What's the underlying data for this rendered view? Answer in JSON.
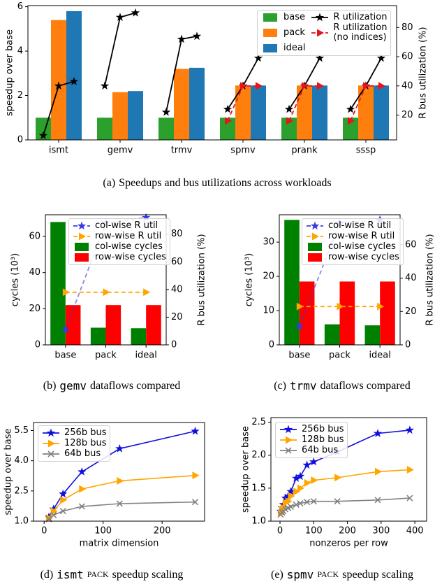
{
  "chart_data": [
    {
      "type": "bar",
      "caption": {
        "label": "(a)",
        "text": "Speedups and bus utilizations across workloads"
      },
      "categories": [
        "ismt",
        "gemv",
        "trmv",
        "spmv",
        "prank",
        "sssp"
      ],
      "ylabel": "speedup over base",
      "y2label": "R bus utilization (%)",
      "ylim": [
        0,
        6.05
      ],
      "yticks": [
        0,
        2,
        4,
        6
      ],
      "y2lim": [
        3,
        95
      ],
      "y2ticks": [
        20,
        40,
        60,
        80
      ],
      "legend": "upper right",
      "series": [
        {
          "name": "base",
          "color": "#2ca02c",
          "values": [
            1,
            1,
            1,
            1,
            1,
            1
          ]
        },
        {
          "name": "pack",
          "color": "#ff7f0e",
          "values": [
            5.4,
            2.15,
            3.2,
            2.45,
            2.45,
            2.45
          ]
        },
        {
          "name": "ideal",
          "color": "#1f77b4",
          "values": [
            5.8,
            2.2,
            3.25,
            2.45,
            2.45,
            2.45
          ]
        },
        {
          "name": "R utilization",
          "type": "line",
          "axis": "y2",
          "color": "#000000",
          "marker": "star",
          "linestyle": "solid",
          "values": [
            [
              6,
              40,
              43
            ],
            [
              40,
              87,
              90
            ],
            [
              22,
              72,
              74
            ],
            [
              24,
              40,
              59
            ],
            [
              24,
              40,
              59
            ],
            [
              24,
              40,
              59
            ]
          ]
        },
        {
          "name": "R utilization\n(no indices)",
          "type": "line",
          "axis": "y2",
          "color": "#e8141c",
          "marker": "triangle",
          "linestyle": "dashed",
          "values": [
            null,
            null,
            null,
            [
              16,
              40,
              40
            ],
            [
              16,
              40,
              40
            ],
            [
              16,
              40,
              40
            ]
          ]
        }
      ]
    },
    {
      "type": "bar",
      "caption": {
        "label": "(b)",
        "code": "gemv",
        "text": "dataflows compared"
      },
      "categories": [
        "base",
        "pack",
        "ideal"
      ],
      "ylabel": "cycles (10³)",
      "y2label": "R bus utilization (%)",
      "ylim": [
        0,
        72
      ],
      "yticks": [
        0,
        20,
        40,
        60
      ],
      "y2lim": [
        0,
        94
      ],
      "y2ticks": [
        0,
        20,
        40,
        60,
        80
      ],
      "legend": "upper right",
      "series": [
        {
          "name": "col-wise R util",
          "type": "line",
          "axis": "y2",
          "color": "#3a3ae0",
          "marker": "star",
          "linestyle": "dashed",
          "values": [
            11,
            88,
            92
          ]
        },
        {
          "name": "row-wise R util",
          "type": "line",
          "axis": "y2",
          "color": "#ffa500",
          "marker": "triangle",
          "linestyle": "dashed",
          "values": [
            38,
            38,
            38
          ]
        },
        {
          "name": "col-wise cycles",
          "color": "#008000",
          "values": [
            68,
            9.5,
            9.2
          ]
        },
        {
          "name": "row-wise cycles",
          "color": "#ff0000",
          "values": [
            22,
            22,
            22
          ]
        }
      ]
    },
    {
      "type": "bar",
      "caption": {
        "label": "(c)",
        "code": "trmv",
        "text": "dataflows compared"
      },
      "categories": [
        "base",
        "pack",
        "ideal"
      ],
      "ylabel": "cycles (10³)",
      "y2label": "R bus utilization (%)",
      "ylim": [
        0,
        38
      ],
      "yticks": [
        0,
        10,
        20,
        30
      ],
      "y2lim": [
        0,
        78
      ],
      "y2ticks": [
        0,
        20,
        40,
        60
      ],
      "legend": "upper right",
      "series": [
        {
          "name": "col-wise R util",
          "type": "line",
          "axis": "y2",
          "color": "#3a3ae0",
          "marker": "star",
          "linestyle": "dashed",
          "values": [
            11,
            73,
            75
          ]
        },
        {
          "name": "row-wise R util",
          "type": "line",
          "axis": "y2",
          "color": "#ffa500",
          "marker": "triangle",
          "linestyle": "dashed",
          "values": [
            23,
            23,
            23
          ]
        },
        {
          "name": "col-wise cycles",
          "color": "#008000",
          "values": [
            36.5,
            6,
            5.7
          ]
        },
        {
          "name": "row-wise cycles",
          "color": "#ff0000",
          "values": [
            18.5,
            18.5,
            18.5
          ]
        }
      ]
    },
    {
      "type": "line",
      "caption": {
        "label": "(d)",
        "code": "ismt",
        "smallcaps": "PACK",
        "text": "speedup scaling"
      },
      "xlabel": "matrix dimension",
      "ylabel": "speedup over base",
      "xlim": [
        -18,
        272
      ],
      "xticks": [
        0,
        100,
        200
      ],
      "ylim": [
        1,
        5.9
      ],
      "yticks": [
        {
          "value": 1,
          "label": "1.0"
        },
        2.5,
        {
          "value": 4,
          "label": "4.0"
        },
        5.5
      ],
      "legend": "upper left",
      "x": [
        8,
        16,
        32,
        64,
        128,
        256
      ],
      "series": [
        {
          "name": "256b bus",
          "color": "#1010dd",
          "marker": "star",
          "linestyle": "solid",
          "values": [
            1.2,
            1.6,
            2.35,
            3.45,
            4.6,
            5.47
          ]
        },
        {
          "name": "128b bus",
          "color": "#ffa500",
          "marker": "triangle",
          "linestyle": "solid",
          "values": [
            1.15,
            1.5,
            2.05,
            2.6,
            3.0,
            3.27
          ]
        },
        {
          "name": "64b bus",
          "color": "#808080",
          "marker": "x",
          "linestyle": "solid",
          "values": [
            1.1,
            1.3,
            1.5,
            1.73,
            1.87,
            1.95
          ]
        }
      ]
    },
    {
      "type": "line",
      "caption": {
        "label": "(e)",
        "code": "spmv",
        "smallcaps": "PACK",
        "text": "speedup scaling"
      },
      "xlabel": "nonzeros per row",
      "ylabel": "speedup over base",
      "xlim": [
        -27,
        435
      ],
      "xticks": [
        0,
        100,
        200,
        300,
        400
      ],
      "ylim": [
        1,
        2.57
      ],
      "yticks": [
        {
          "value": 1,
          "label": "1.0"
        },
        1.5,
        {
          "value": 2,
          "label": "2.0"
        },
        2.5
      ],
      "legend": "upper left",
      "x": [
        2,
        6,
        10,
        16,
        24,
        32,
        48,
        60,
        80,
        100,
        170,
        290,
        385
      ],
      "series": [
        {
          "name": "256b bus",
          "color": "#1010dd",
          "marker": "star",
          "linestyle": "solid",
          "values": [
            1.15,
            1.2,
            1.25,
            1.35,
            1.38,
            1.45,
            1.65,
            1.68,
            1.85,
            1.9,
            2.05,
            2.33,
            2.38
          ]
        },
        {
          "name": "128b bus",
          "color": "#ffa500",
          "marker": "triangle",
          "linestyle": "solid",
          "values": [
            1.12,
            1.17,
            1.2,
            1.28,
            1.3,
            1.38,
            1.45,
            1.5,
            1.58,
            1.62,
            1.66,
            1.75,
            1.78
          ]
        },
        {
          "name": "64b bus",
          "color": "#808080",
          "marker": "x",
          "linestyle": "solid",
          "values": [
            1.1,
            1.13,
            1.15,
            1.18,
            1.2,
            1.22,
            1.25,
            1.27,
            1.29,
            1.3,
            1.3,
            1.32,
            1.35
          ]
        }
      ]
    }
  ]
}
